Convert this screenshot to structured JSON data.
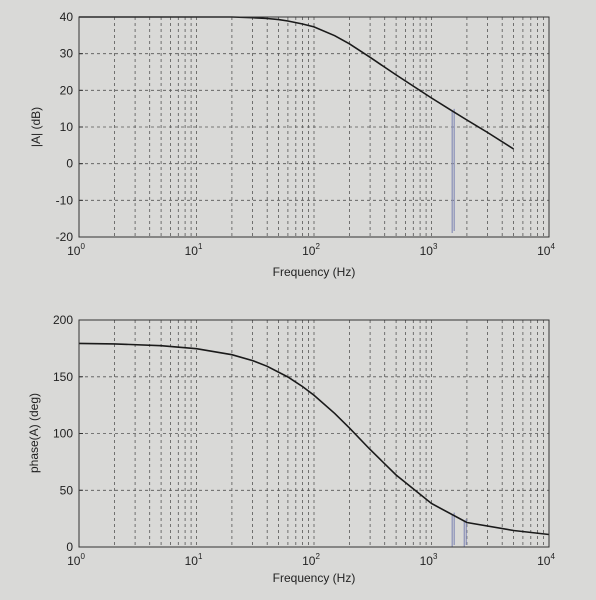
{
  "chart_data": [
    {
      "type": "line",
      "xlabel": "Frequency (Hz)",
      "ylabel": "|A| (dB)",
      "xscale": "log",
      "xlim": [
        1,
        10000
      ],
      "ylim": [
        -20,
        40
      ],
      "xticks": [
        {
          "base": "10",
          "exp": "0"
        },
        {
          "base": "10",
          "exp": "1"
        },
        {
          "base": "10",
          "exp": "2"
        },
        {
          "base": "10",
          "exp": "3"
        },
        {
          "base": "10",
          "exp": "4"
        }
      ],
      "yticks": [
        "40",
        "30",
        "20",
        "10",
        "0",
        "-10",
        "-20"
      ],
      "grid": true,
      "series": [
        {
          "x": [
            1,
            10,
            20,
            30,
            40,
            50,
            60,
            80,
            100,
            150,
            200,
            300,
            500,
            1000,
            1500,
            2000,
            3000,
            5000
          ],
          "y": [
            40,
            40,
            40,
            39.8,
            39.6,
            39.3,
            38.9,
            38.1,
            37.3,
            34.9,
            32.7,
            29.0,
            24.2,
            17.9,
            14.4,
            11.9,
            8.5,
            4.0
          ]
        }
      ],
      "annotations": [
        {
          "type": "vertical-marker",
          "x": 1500
        }
      ],
      "colors": {
        "curve": "#1a1a1a",
        "marker": "#8a90b8"
      }
    },
    {
      "type": "line",
      "xlabel": "Frequency (Hz)",
      "ylabel": "phase(A) (deg)",
      "xscale": "log",
      "xlim": [
        1,
        10000
      ],
      "ylim": [
        0,
        200
      ],
      "xticks": [
        {
          "base": "10",
          "exp": "0"
        },
        {
          "base": "10",
          "exp": "1"
        },
        {
          "base": "10",
          "exp": "2"
        },
        {
          "base": "10",
          "exp": "3"
        },
        {
          "base": "10",
          "exp": "4"
        }
      ],
      "yticks": [
        "200",
        "150",
        "100",
        "50",
        "0"
      ],
      "grid": true,
      "series": [
        {
          "x": [
            1,
            2,
            5,
            10,
            20,
            30,
            40,
            60,
            80,
            100,
            150,
            200,
            300,
            500,
            1000,
            2000,
            5000,
            10000
          ],
          "y": [
            179.4,
            178.9,
            177.4,
            174.7,
            169.4,
            164.2,
            159.2,
            149.8,
            141.3,
            133.7,
            117.7,
            104.9,
            85.9,
            63.4,
            38.3,
            21.6,
            14.5,
            11.0
          ]
        }
      ],
      "annotations": [
        {
          "type": "vertical-marker",
          "x": 1500
        },
        {
          "type": "vertical-marker",
          "x": 1900
        }
      ],
      "colors": {
        "curve": "#1a1a1a",
        "marker": "#3d4266"
      }
    }
  ]
}
